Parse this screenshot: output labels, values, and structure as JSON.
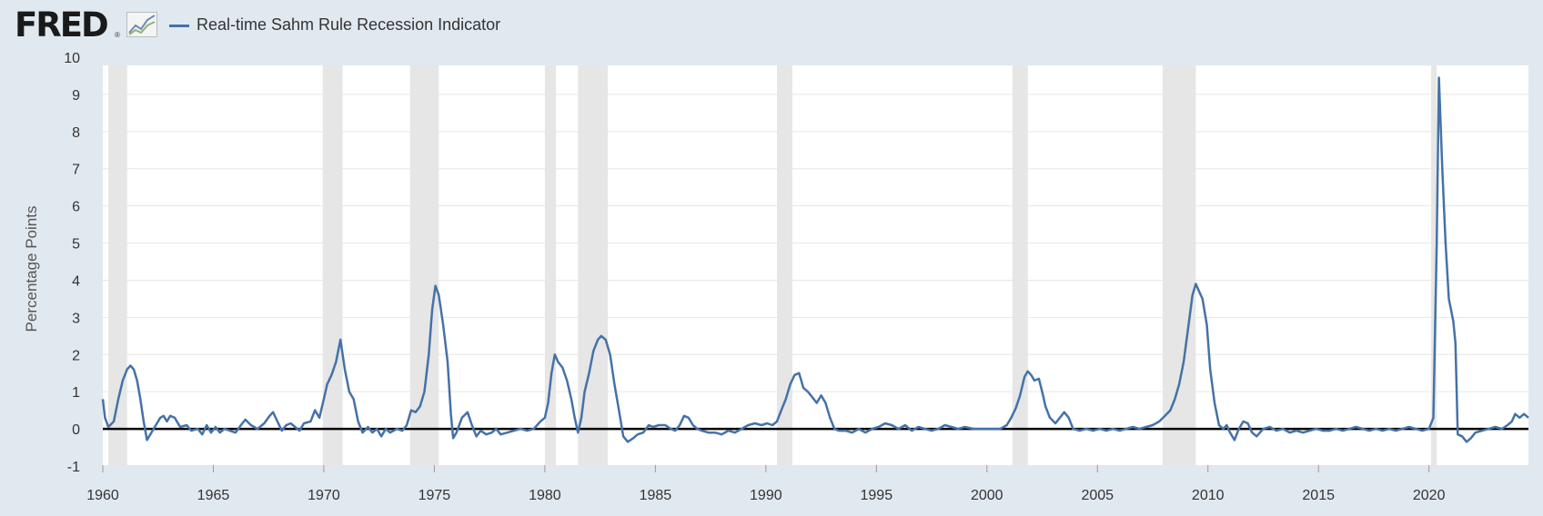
{
  "header": {
    "logo_text": "FRED",
    "logo_reg": "®",
    "legend_label": "Real-time Sahm Rule Recession Indicator"
  },
  "colors": {
    "line": "#4572a7",
    "recession_band": "#e6e6e6",
    "plot_bg": "#ffffff",
    "zero_line": "#000000",
    "background": "#e1e9f0"
  },
  "chart_data": {
    "type": "line",
    "title": "",
    "xlabel": "",
    "ylabel": "Percentage Points",
    "xlim": [
      1960,
      2024.5
    ],
    "ylim": [
      -1,
      10
    ],
    "x_ticks": [
      1960,
      1965,
      1970,
      1975,
      1980,
      1985,
      1990,
      1995,
      2000,
      2005,
      2010,
      2015,
      2020
    ],
    "y_ticks": [
      -1,
      0,
      1,
      2,
      3,
      4,
      5,
      6,
      7,
      8,
      9,
      10
    ],
    "grid": "horizontal",
    "legend": "top-left",
    "recessions": [
      [
        1960.25,
        1961.1
      ],
      [
        1969.95,
        1970.85
      ],
      [
        1973.9,
        1975.2
      ],
      [
        1980.0,
        1980.5
      ],
      [
        1981.5,
        1982.85
      ],
      [
        1990.5,
        1991.2
      ],
      [
        2001.15,
        2001.85
      ],
      [
        2007.95,
        2009.45
      ],
      [
        2020.1,
        2020.35
      ]
    ],
    "series": [
      {
        "values": [
          [
            1960.0,
            0.8
          ],
          [
            1960.1,
            0.3
          ],
          [
            1960.25,
            0.05
          ],
          [
            1960.5,
            0.2
          ],
          [
            1960.7,
            0.8
          ],
          [
            1960.9,
            1.3
          ],
          [
            1961.1,
            1.6
          ],
          [
            1961.25,
            1.7
          ],
          [
            1961.4,
            1.6
          ],
          [
            1961.55,
            1.3
          ],
          [
            1961.7,
            0.8
          ],
          [
            1961.85,
            0.2
          ],
          [
            1962.0,
            -0.3
          ],
          [
            1962.15,
            -0.15
          ],
          [
            1962.4,
            0.1
          ],
          [
            1962.6,
            0.3
          ],
          [
            1962.75,
            0.35
          ],
          [
            1962.9,
            0.2
          ],
          [
            1963.05,
            0.35
          ],
          [
            1963.25,
            0.3
          ],
          [
            1963.5,
            0.05
          ],
          [
            1963.8,
            0.1
          ],
          [
            1964.0,
            -0.05
          ],
          [
            1964.3,
            0.0
          ],
          [
            1964.5,
            -0.15
          ],
          [
            1964.7,
            0.1
          ],
          [
            1964.9,
            -0.1
          ],
          [
            1965.1,
            0.05
          ],
          [
            1965.3,
            -0.1
          ],
          [
            1965.5,
            0.0
          ],
          [
            1965.75,
            -0.05
          ],
          [
            1966.0,
            -0.1
          ],
          [
            1966.25,
            0.1
          ],
          [
            1966.45,
            0.25
          ],
          [
            1966.7,
            0.1
          ],
          [
            1967.0,
            0.0
          ],
          [
            1967.3,
            0.15
          ],
          [
            1967.55,
            0.35
          ],
          [
            1967.7,
            0.45
          ],
          [
            1967.9,
            0.2
          ],
          [
            1968.1,
            -0.05
          ],
          [
            1968.3,
            0.1
          ],
          [
            1968.5,
            0.15
          ],
          [
            1968.7,
            0.05
          ],
          [
            1968.9,
            -0.05
          ],
          [
            1969.1,
            0.15
          ],
          [
            1969.4,
            0.2
          ],
          [
            1969.6,
            0.5
          ],
          [
            1969.8,
            0.3
          ],
          [
            1970.0,
            0.8
          ],
          [
            1970.15,
            1.2
          ],
          [
            1970.35,
            1.45
          ],
          [
            1970.55,
            1.8
          ],
          [
            1970.75,
            2.4
          ],
          [
            1970.95,
            1.6
          ],
          [
            1971.15,
            1.0
          ],
          [
            1971.35,
            0.8
          ],
          [
            1971.55,
            0.2
          ],
          [
            1971.75,
            -0.1
          ],
          [
            1972.0,
            0.05
          ],
          [
            1972.2,
            -0.1
          ],
          [
            1972.4,
            0.0
          ],
          [
            1972.6,
            -0.2
          ],
          [
            1972.8,
            0.0
          ],
          [
            1973.0,
            -0.1
          ],
          [
            1973.3,
            0.0
          ],
          [
            1973.55,
            -0.05
          ],
          [
            1973.75,
            0.1
          ],
          [
            1973.95,
            0.5
          ],
          [
            1974.15,
            0.45
          ],
          [
            1974.35,
            0.6
          ],
          [
            1974.55,
            1.0
          ],
          [
            1974.75,
            2.0
          ],
          [
            1974.9,
            3.2
          ],
          [
            1975.05,
            3.85
          ],
          [
            1975.2,
            3.6
          ],
          [
            1975.4,
            2.8
          ],
          [
            1975.6,
            1.8
          ],
          [
            1975.75,
            0.4
          ],
          [
            1975.85,
            -0.25
          ],
          [
            1976.0,
            -0.1
          ],
          [
            1976.25,
            0.3
          ],
          [
            1976.5,
            0.45
          ],
          [
            1976.7,
            0.1
          ],
          [
            1976.9,
            -0.2
          ],
          [
            1977.1,
            -0.05
          ],
          [
            1977.35,
            -0.15
          ],
          [
            1977.6,
            -0.1
          ],
          [
            1977.8,
            0.0
          ],
          [
            1978.0,
            -0.15
          ],
          [
            1978.3,
            -0.1
          ],
          [
            1978.6,
            -0.05
          ],
          [
            1978.9,
            0.0
          ],
          [
            1979.2,
            -0.05
          ],
          [
            1979.5,
            0.0
          ],
          [
            1979.8,
            0.2
          ],
          [
            1980.0,
            0.3
          ],
          [
            1980.15,
            0.7
          ],
          [
            1980.3,
            1.5
          ],
          [
            1980.45,
            2.0
          ],
          [
            1980.6,
            1.8
          ],
          [
            1980.8,
            1.65
          ],
          [
            1981.0,
            1.3
          ],
          [
            1981.2,
            0.8
          ],
          [
            1981.35,
            0.3
          ],
          [
            1981.5,
            -0.1
          ],
          [
            1981.65,
            0.3
          ],
          [
            1981.8,
            1.0
          ],
          [
            1982.0,
            1.5
          ],
          [
            1982.2,
            2.1
          ],
          [
            1982.4,
            2.4
          ],
          [
            1982.55,
            2.5
          ],
          [
            1982.75,
            2.4
          ],
          [
            1982.95,
            2.0
          ],
          [
            1983.15,
            1.2
          ],
          [
            1983.35,
            0.5
          ],
          [
            1983.55,
            -0.2
          ],
          [
            1983.75,
            -0.35
          ],
          [
            1984.0,
            -0.25
          ],
          [
            1984.2,
            -0.15
          ],
          [
            1984.45,
            -0.1
          ],
          [
            1984.7,
            0.1
          ],
          [
            1984.9,
            0.05
          ],
          [
            1985.15,
            0.1
          ],
          [
            1985.45,
            0.1
          ],
          [
            1985.7,
            0.0
          ],
          [
            1985.9,
            -0.05
          ],
          [
            1986.1,
            0.1
          ],
          [
            1986.3,
            0.35
          ],
          [
            1986.5,
            0.3
          ],
          [
            1986.7,
            0.1
          ],
          [
            1986.9,
            0.0
          ],
          [
            1987.1,
            -0.05
          ],
          [
            1987.4,
            -0.1
          ],
          [
            1987.7,
            -0.1
          ],
          [
            1988.0,
            -0.15
          ],
          [
            1988.3,
            -0.05
          ],
          [
            1988.6,
            -0.1
          ],
          [
            1988.9,
            0.0
          ],
          [
            1989.2,
            0.1
          ],
          [
            1989.5,
            0.15
          ],
          [
            1989.8,
            0.1
          ],
          [
            1990.05,
            0.15
          ],
          [
            1990.3,
            0.1
          ],
          [
            1990.5,
            0.2
          ],
          [
            1990.7,
            0.5
          ],
          [
            1990.9,
            0.8
          ],
          [
            1991.1,
            1.2
          ],
          [
            1991.3,
            1.45
          ],
          [
            1991.5,
            1.5
          ],
          [
            1991.7,
            1.1
          ],
          [
            1991.9,
            1.0
          ],
          [
            1992.1,
            0.85
          ],
          [
            1992.3,
            0.7
          ],
          [
            1992.5,
            0.9
          ],
          [
            1992.7,
            0.7
          ],
          [
            1992.9,
            0.3
          ],
          [
            1993.1,
            0.0
          ],
          [
            1993.3,
            -0.05
          ],
          [
            1993.6,
            -0.05
          ],
          [
            1993.9,
            -0.1
          ],
          [
            1994.2,
            0.0
          ],
          [
            1994.5,
            -0.1
          ],
          [
            1994.8,
            0.0
          ],
          [
            1995.1,
            0.05
          ],
          [
            1995.4,
            0.15
          ],
          [
            1995.7,
            0.1
          ],
          [
            1996.0,
            0.0
          ],
          [
            1996.3,
            0.1
          ],
          [
            1996.6,
            -0.05
          ],
          [
            1996.9,
            0.05
          ],
          [
            1997.2,
            0.0
          ],
          [
            1997.5,
            -0.05
          ],
          [
            1997.8,
            0.0
          ],
          [
            1998.1,
            0.1
          ],
          [
            1998.4,
            0.05
          ],
          [
            1998.7,
            0.0
          ],
          [
            1999.0,
            0.05
          ],
          [
            1999.4,
            0.0
          ],
          [
            1999.8,
            0.0
          ],
          [
            2000.2,
            0.0
          ],
          [
            2000.6,
            0.0
          ],
          [
            2000.9,
            0.1
          ],
          [
            2001.1,
            0.3
          ],
          [
            2001.3,
            0.55
          ],
          [
            2001.5,
            0.9
          ],
          [
            2001.7,
            1.4
          ],
          [
            2001.85,
            1.55
          ],
          [
            2002.0,
            1.45
          ],
          [
            2002.15,
            1.3
          ],
          [
            2002.35,
            1.35
          ],
          [
            2002.5,
            1.0
          ],
          [
            2002.65,
            0.6
          ],
          [
            2002.85,
            0.3
          ],
          [
            2003.1,
            0.15
          ],
          [
            2003.3,
            0.3
          ],
          [
            2003.5,
            0.45
          ],
          [
            2003.7,
            0.3
          ],
          [
            2003.9,
            0.0
          ],
          [
            2004.2,
            -0.05
          ],
          [
            2004.5,
            0.0
          ],
          [
            2004.8,
            -0.05
          ],
          [
            2005.1,
            0.0
          ],
          [
            2005.4,
            -0.05
          ],
          [
            2005.7,
            0.0
          ],
          [
            2006.0,
            -0.05
          ],
          [
            2006.3,
            0.0
          ],
          [
            2006.6,
            0.05
          ],
          [
            2006.9,
            0.0
          ],
          [
            2007.2,
            0.05
          ],
          [
            2007.5,
            0.1
          ],
          [
            2007.8,
            0.2
          ],
          [
            2008.05,
            0.35
          ],
          [
            2008.3,
            0.5
          ],
          [
            2008.5,
            0.8
          ],
          [
            2008.7,
            1.2
          ],
          [
            2008.9,
            1.8
          ],
          [
            2009.1,
            2.7
          ],
          [
            2009.3,
            3.6
          ],
          [
            2009.45,
            3.9
          ],
          [
            2009.6,
            3.7
          ],
          [
            2009.75,
            3.5
          ],
          [
            2009.95,
            2.8
          ],
          [
            2010.1,
            1.6
          ],
          [
            2010.3,
            0.7
          ],
          [
            2010.5,
            0.1
          ],
          [
            2010.7,
            0.0
          ],
          [
            2010.85,
            0.1
          ],
          [
            2011.0,
            -0.1
          ],
          [
            2011.2,
            -0.3
          ],
          [
            2011.4,
            0.0
          ],
          [
            2011.6,
            0.2
          ],
          [
            2011.8,
            0.15
          ],
          [
            2012.0,
            -0.1
          ],
          [
            2012.2,
            -0.2
          ],
          [
            2012.5,
            0.0
          ],
          [
            2012.8,
            0.05
          ],
          [
            2013.1,
            -0.05
          ],
          [
            2013.4,
            0.0
          ],
          [
            2013.7,
            -0.1
          ],
          [
            2014.0,
            -0.05
          ],
          [
            2014.3,
            -0.1
          ],
          [
            2014.6,
            -0.05
          ],
          [
            2014.9,
            0.0
          ],
          [
            2015.2,
            -0.05
          ],
          [
            2015.5,
            -0.05
          ],
          [
            2015.8,
            0.0
          ],
          [
            2016.1,
            -0.05
          ],
          [
            2016.4,
            0.0
          ],
          [
            2016.7,
            0.05
          ],
          [
            2017.0,
            0.0
          ],
          [
            2017.3,
            -0.05
          ],
          [
            2017.6,
            0.0
          ],
          [
            2017.9,
            -0.05
          ],
          [
            2018.2,
            0.0
          ],
          [
            2018.5,
            -0.05
          ],
          [
            2018.8,
            0.0
          ],
          [
            2019.1,
            0.05
          ],
          [
            2019.4,
            0.0
          ],
          [
            2019.7,
            -0.05
          ],
          [
            2020.0,
            0.0
          ],
          [
            2020.2,
            0.3
          ],
          [
            2020.35,
            5.0
          ],
          [
            2020.45,
            9.45
          ],
          [
            2020.6,
            7.0
          ],
          [
            2020.75,
            5.0
          ],
          [
            2020.9,
            3.5
          ],
          [
            2021.1,
            2.9
          ],
          [
            2021.2,
            2.3
          ],
          [
            2021.3,
            -0.15
          ],
          [
            2021.5,
            -0.2
          ],
          [
            2021.7,
            -0.35
          ],
          [
            2021.9,
            -0.25
          ],
          [
            2022.1,
            -0.1
          ],
          [
            2022.4,
            -0.05
          ],
          [
            2022.7,
            0.0
          ],
          [
            2023.0,
            0.05
          ],
          [
            2023.3,
            0.0
          ],
          [
            2023.55,
            0.1
          ],
          [
            2023.75,
            0.2
          ],
          [
            2023.9,
            0.4
          ],
          [
            2024.1,
            0.3
          ],
          [
            2024.3,
            0.4
          ],
          [
            2024.5,
            0.3
          ]
        ]
      }
    ]
  }
}
